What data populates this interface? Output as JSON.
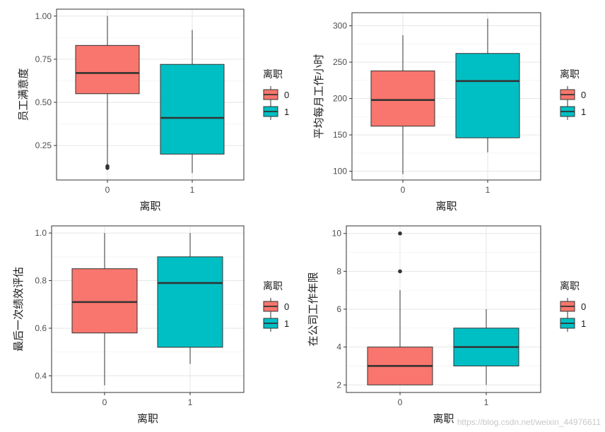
{
  "watermark": "https://blog.csdn.net/weixin_44976611",
  "chart_data": [
    {
      "type": "boxplot",
      "xlabel": "离职",
      "ylabel": "员工满意度",
      "categories": [
        "0",
        "1"
      ],
      "ylim": [
        0.05,
        1.04
      ],
      "yticks": [
        0.25,
        0.5,
        0.75,
        1.0
      ],
      "ytick_labels": [
        "0.25",
        "0.50",
        "0.75",
        "1.00"
      ],
      "legend_title": "离职",
      "legend": [
        "0",
        "1"
      ],
      "colors": [
        "#F8766D",
        "#00BFC4"
      ],
      "boxes": [
        {
          "name": "0",
          "whisker_low": 0.12,
          "q1": 0.55,
          "median": 0.67,
          "q3": 0.83,
          "whisker_high": 1.0,
          "outliers": [
            0.12,
            0.13
          ]
        },
        {
          "name": "1",
          "whisker_low": 0.09,
          "q1": 0.2,
          "median": 0.41,
          "q3": 0.72,
          "whisker_high": 0.92,
          "outliers": []
        }
      ]
    },
    {
      "type": "boxplot",
      "xlabel": "离职",
      "ylabel": "平均每月工作小时",
      "categories": [
        "0",
        "1"
      ],
      "ylim": [
        88,
        318
      ],
      "yticks": [
        100,
        150,
        200,
        250,
        300
      ],
      "ytick_labels": [
        "100",
        "150",
        "200",
        "250",
        "300"
      ],
      "legend_title": "离职",
      "legend": [
        "0",
        "1"
      ],
      "colors": [
        "#F8766D",
        "#00BFC4"
      ],
      "boxes": [
        {
          "name": "0",
          "whisker_low": 96,
          "q1": 162,
          "median": 198,
          "q3": 238,
          "whisker_high": 287,
          "outliers": []
        },
        {
          "name": "1",
          "whisker_low": 126,
          "q1": 146,
          "median": 224,
          "q3": 262,
          "whisker_high": 310,
          "outliers": []
        }
      ]
    },
    {
      "type": "boxplot",
      "xlabel": "离职",
      "ylabel": "最后一次绩效评估",
      "categories": [
        "0",
        "1"
      ],
      "ylim": [
        0.33,
        1.03
      ],
      "yticks": [
        0.4,
        0.6,
        0.8,
        1.0
      ],
      "ytick_labels": [
        "0.4",
        "0.6",
        "0.8",
        "1.0"
      ],
      "legend_title": "离职",
      "legend": [
        "0",
        "1"
      ],
      "colors": [
        "#F8766D",
        "#00BFC4"
      ],
      "boxes": [
        {
          "name": "0",
          "whisker_low": 0.36,
          "q1": 0.58,
          "median": 0.71,
          "q3": 0.85,
          "whisker_high": 1.0,
          "outliers": []
        },
        {
          "name": "1",
          "whisker_low": 0.45,
          "q1": 0.52,
          "median": 0.79,
          "q3": 0.9,
          "whisker_high": 1.0,
          "outliers": []
        }
      ]
    },
    {
      "type": "boxplot",
      "xlabel": "离职",
      "ylabel": "在公司工作年限",
      "categories": [
        "0",
        "1"
      ],
      "ylim": [
        1.6,
        10.4
      ],
      "yticks": [
        2,
        4,
        6,
        8,
        10
      ],
      "ytick_labels": [
        "2",
        "4",
        "6",
        "8",
        "10"
      ],
      "legend_title": "离职",
      "legend": [
        "0",
        "1"
      ],
      "colors": [
        "#F8766D",
        "#00BFC4"
      ],
      "boxes": [
        {
          "name": "0",
          "whisker_low": 2,
          "q1": 2,
          "median": 3,
          "q3": 4,
          "whisker_high": 7,
          "outliers": [
            8,
            10
          ]
        },
        {
          "name": "1",
          "whisker_low": 2,
          "q1": 3,
          "median": 4,
          "q3": 5,
          "whisker_high": 6,
          "outliers": []
        }
      ]
    }
  ]
}
